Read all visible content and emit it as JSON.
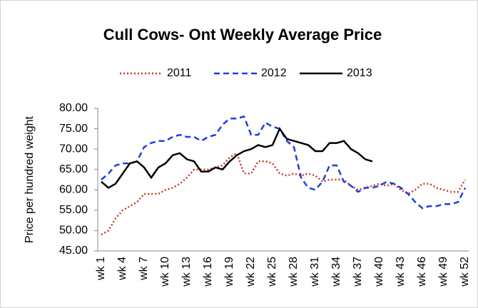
{
  "chart_data": {
    "type": "line",
    "title": "Cull Cows- Ont Weekly Average Price",
    "y_label": "Price per hundred weight",
    "categories": [
      "wk 1",
      null,
      null,
      "wk 4",
      null,
      null,
      "wk 7",
      null,
      null,
      "wk 10",
      null,
      null,
      "wk 13",
      null,
      null,
      "wk 16",
      null,
      null,
      "wk 19",
      null,
      null,
      "wk 22",
      null,
      null,
      "wk 25",
      null,
      null,
      "wk 28",
      null,
      null,
      "wk 31",
      null,
      null,
      "wk 34",
      null,
      null,
      "wk 37",
      null,
      null,
      "wk 40",
      null,
      null,
      "wk 43",
      null,
      null,
      "wk 46",
      null,
      null,
      "wk 49",
      null,
      null,
      "wk 52"
    ],
    "series": [
      {
        "name": "2011",
        "color": "#c0392b",
        "dash": "2,3",
        "values": [
          49,
          50,
          53,
          55,
          56,
          57,
          59,
          59,
          59,
          60,
          60.5,
          61.5,
          63,
          65,
          65,
          65,
          65.5,
          66,
          68,
          69,
          64,
          64,
          67,
          67,
          66.5,
          64,
          63.5,
          64,
          63.5,
          64,
          63.5,
          62,
          62.5,
          62.5,
          62.5,
          61,
          60,
          60.5,
          61,
          61.5,
          61,
          61.5,
          60,
          59,
          60,
          61.5,
          61.5,
          60.5,
          60,
          59.5,
          59.5,
          62.5
        ]
      },
      {
        "name": "2012",
        "color": "#1f3fe0",
        "dash": "8,5",
        "values": [
          62.5,
          64,
          66,
          66.5,
          66.5,
          67,
          70.5,
          71.5,
          72,
          72,
          73,
          73.5,
          73,
          73,
          72,
          73,
          73.5,
          76,
          77.5,
          77.5,
          78,
          73.5,
          73.5,
          76.5,
          75.5,
          75,
          72,
          70.5,
          63,
          60.5,
          60,
          62,
          66,
          66,
          62,
          61,
          59.5,
          60.5,
          60.5,
          61,
          62,
          61.5,
          60.5,
          59,
          57,
          55.5,
          56,
          56,
          56.5,
          56.5,
          57,
          60.5
        ]
      },
      {
        "name": "2013",
        "color": "#000000",
        "dash": "none",
        "values": [
          62,
          60.5,
          61.5,
          64,
          66.5,
          67,
          65.5,
          63,
          65.5,
          66.5,
          68.5,
          69,
          67.5,
          67,
          64.5,
          64.5,
          65.5,
          65,
          67,
          68.5,
          69.5,
          70,
          71,
          70.5,
          71,
          75,
          72.5,
          72,
          71.5,
          71,
          69.5,
          69.5,
          71.5,
          71.5,
          72,
          70,
          69,
          67.5,
          67,
          null,
          null,
          null,
          null,
          null,
          null,
          null,
          null,
          null,
          null,
          null,
          null,
          null
        ]
      }
    ],
    "ylim": [
      45,
      80
    ],
    "yticks": [
      {
        "value": 45,
        "label": "45.00"
      },
      {
        "value": 50,
        "label": "50.00"
      },
      {
        "value": 55,
        "label": "55.00"
      },
      {
        "value": 60,
        "label": "60.00"
      },
      {
        "value": 65,
        "label": "65.00"
      },
      {
        "value": 70,
        "label": "70.00"
      },
      {
        "value": 75,
        "label": "75.00"
      },
      {
        "value": 80,
        "label": "80.00"
      }
    ],
    "legend": "top"
  }
}
